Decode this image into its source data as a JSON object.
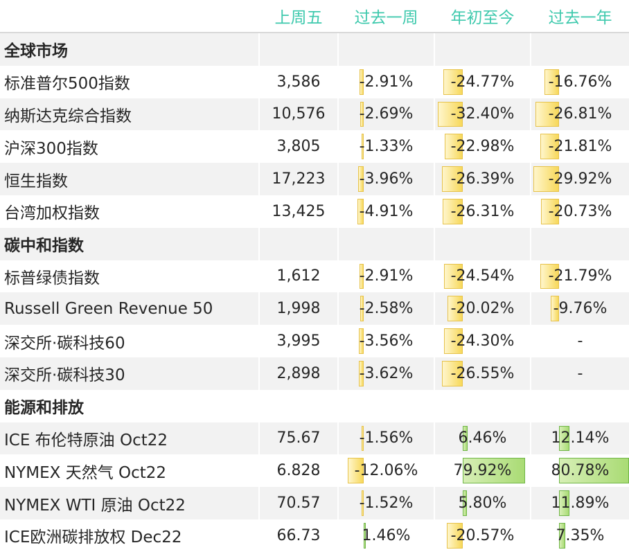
{
  "colors": {
    "header_text": "#3ec9ad",
    "stripe": "#f2f2f2",
    "neg_bar": "#f7d85a",
    "pos_bar": "#a9db74"
  },
  "chart_data": {
    "type": "table",
    "columns": [
      "上周五",
      "过去一周",
      "年初至今",
      "过去一年"
    ],
    "rows": [
      {
        "label": "全球市场",
        "section": true,
        "close": "",
        "week": null,
        "ytd": null,
        "year": null,
        "week_text": "",
        "ytd_text": "",
        "year_text": ""
      },
      {
        "label": "标准普尔500指数",
        "section": false,
        "close": "3,586",
        "week": -2.91,
        "ytd": -24.77,
        "year": -16.76,
        "week_text": "-2.91%",
        "ytd_text": "-24.77%",
        "year_text": "-16.76%"
      },
      {
        "label": "纳斯达克综合指数",
        "section": false,
        "close": "10,576",
        "week": -2.69,
        "ytd": -32.4,
        "year": -26.81,
        "week_text": "-2.69%",
        "ytd_text": "-32.40%",
        "year_text": "-26.81%"
      },
      {
        "label": "沪深300指数",
        "section": false,
        "close": "3,805",
        "week": -1.33,
        "ytd": -22.98,
        "year": -21.81,
        "week_text": "-1.33%",
        "ytd_text": "-22.98%",
        "year_text": "-21.81%"
      },
      {
        "label": "恒生指数",
        "section": false,
        "close": "17,223",
        "week": -3.96,
        "ytd": -26.39,
        "year": -29.92,
        "week_text": "-3.96%",
        "ytd_text": "-26.39%",
        "year_text": "-29.92%"
      },
      {
        "label": "台湾加权指数",
        "section": false,
        "close": "13,425",
        "week": -4.91,
        "ytd": -26.31,
        "year": -20.73,
        "week_text": "-4.91%",
        "ytd_text": "-26.31%",
        "year_text": "-20.73%"
      },
      {
        "label": "碳中和指数",
        "section": true,
        "close": "",
        "week": null,
        "ytd": null,
        "year": null,
        "week_text": "",
        "ytd_text": "",
        "year_text": ""
      },
      {
        "label": "标普绿债指数",
        "section": false,
        "close": "1,612",
        "week": -2.91,
        "ytd": -24.54,
        "year": -21.79,
        "week_text": "-2.91%",
        "ytd_text": "-24.54%",
        "year_text": "-21.79%"
      },
      {
        "label": "Russell Green Revenue 50",
        "section": false,
        "close": "1,998",
        "week": -2.58,
        "ytd": -20.02,
        "year": -9.76,
        "week_text": "-2.58%",
        "ytd_text": "-20.02%",
        "year_text": "-9.76%"
      },
      {
        "label": "深交所·碳科技60",
        "section": false,
        "close": "3,995",
        "week": -3.56,
        "ytd": -24.3,
        "year": null,
        "week_text": "-3.56%",
        "ytd_text": "-24.30%",
        "year_text": "-"
      },
      {
        "label": "深交所·碳科技30",
        "section": false,
        "close": "2,898",
        "week": -3.62,
        "ytd": -26.55,
        "year": null,
        "week_text": "-3.62%",
        "ytd_text": "-26.55%",
        "year_text": "-"
      },
      {
        "label": "能源和排放",
        "section": true,
        "close": "",
        "week": null,
        "ytd": null,
        "year": null,
        "week_text": "",
        "ytd_text": "",
        "year_text": ""
      },
      {
        "label": "ICE 布伦特原油 Oct22",
        "section": false,
        "close": "75.67",
        "week": -1.56,
        "ytd": 6.46,
        "year": 12.14,
        "week_text": "-1.56%",
        "ytd_text": "6.46%",
        "year_text": "12.14%"
      },
      {
        "label": "NYMEX 天然气 Oct22",
        "section": false,
        "close": "6.828",
        "week": -12.06,
        "ytd": 79.92,
        "year": 80.78,
        "week_text": "-12.06%",
        "ytd_text": "79.92%",
        "year_text": "80.78%"
      },
      {
        "label": "NYMEX WTI 原油 Oct22",
        "section": false,
        "close": "70.57",
        "week": -1.52,
        "ytd": 5.8,
        "year": 11.89,
        "week_text": "-1.52%",
        "ytd_text": "5.80%",
        "year_text": "11.89%"
      },
      {
        "label": "ICE欧洲碳排放权  Dec22",
        "section": false,
        "close": "66.73",
        "week": 1.46,
        "ytd": -20.57,
        "year": 7.35,
        "week_text": "1.46%",
        "ytd_text": "-20.57%",
        "year_text": "7.35%"
      }
    ]
  }
}
